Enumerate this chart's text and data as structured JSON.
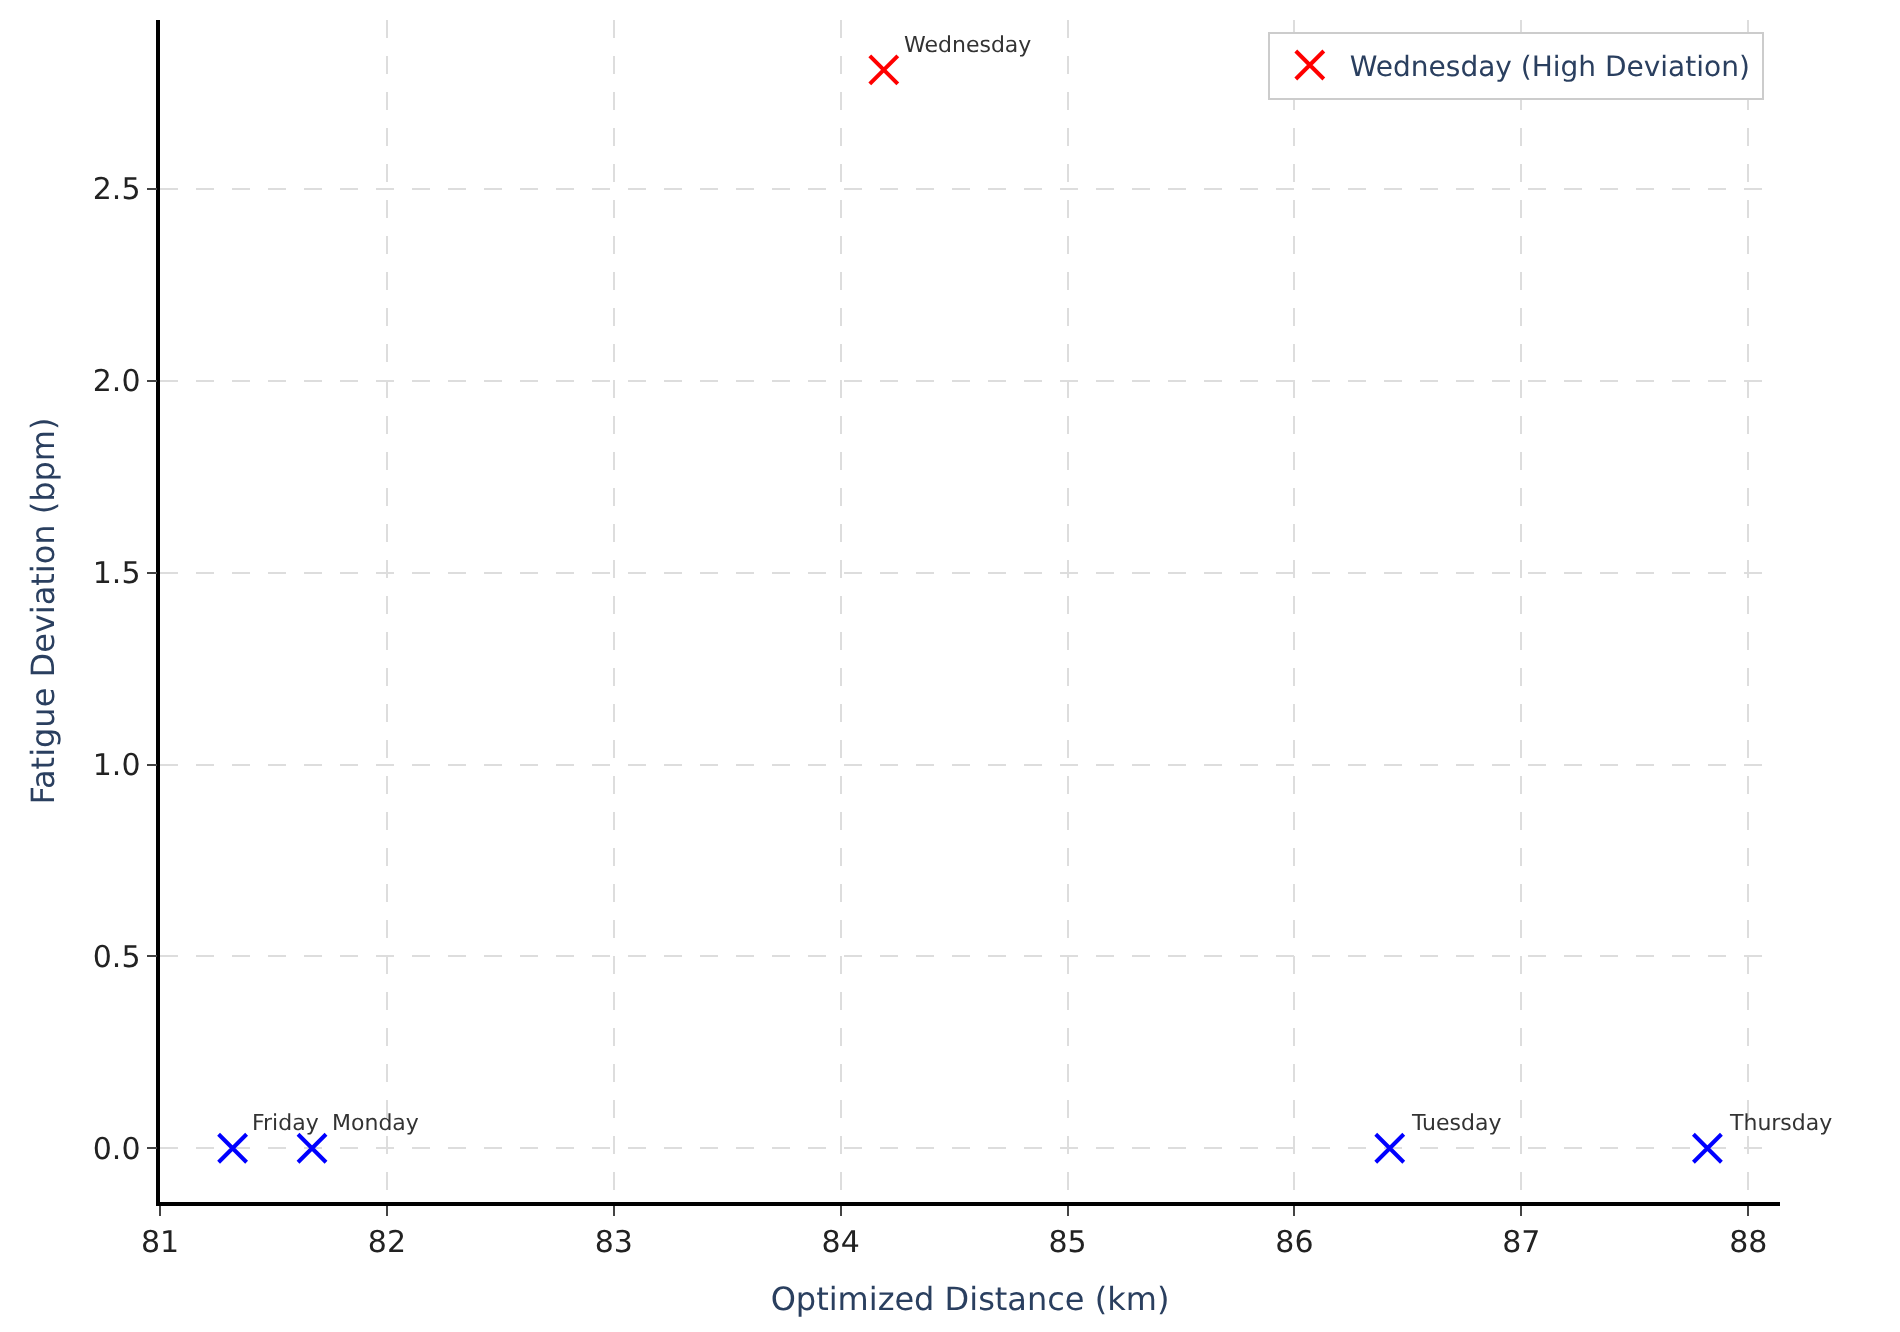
{
  "chart_data": {
    "type": "scatter",
    "xlabel": "Optimized Distance (km)",
    "ylabel": "Fatigue Deviation (bpm)",
    "series": [
      {
        "color": "#0000ff",
        "x": [
          81.67,
          86.42,
          87.82,
          81.32
        ],
        "values": [
          0,
          0,
          0,
          0
        ]
      },
      {
        "name": "Wednesday (High Deviation)",
        "color": "#ff0000",
        "x": [
          84.19
        ],
        "values": [
          2.81
        ]
      }
    ],
    "annotations": [
      {
        "text": "Monday",
        "x": 81.67,
        "y": 0
      },
      {
        "text": "Tuesday",
        "x": 86.42,
        "y": 0
      },
      {
        "text": "Wednesday",
        "x": 84.19,
        "y": 2.81
      },
      {
        "text": "Thursday",
        "x": 87.82,
        "y": 0
      },
      {
        "text": "Friday",
        "x": 81.32,
        "y": 0
      }
    ],
    "xlim": [
      81,
      88.14
    ],
    "xticks": [
      81,
      82,
      83,
      84,
      85,
      86,
      87,
      88
    ],
    "ylim": [
      -0.14,
      2.94
    ],
    "yticks": [
      {
        "value": 0,
        "label": "0.0"
      },
      {
        "value": 0.5,
        "label": "0.5"
      },
      {
        "value": 1,
        "label": "1.0"
      },
      {
        "value": 1.5,
        "label": "1.5"
      },
      {
        "value": 2,
        "label": "2.0"
      },
      {
        "value": 2.5,
        "label": "2.5"
      }
    ],
    "grid": true,
    "legend": "top right",
    "marker": "cross"
  }
}
